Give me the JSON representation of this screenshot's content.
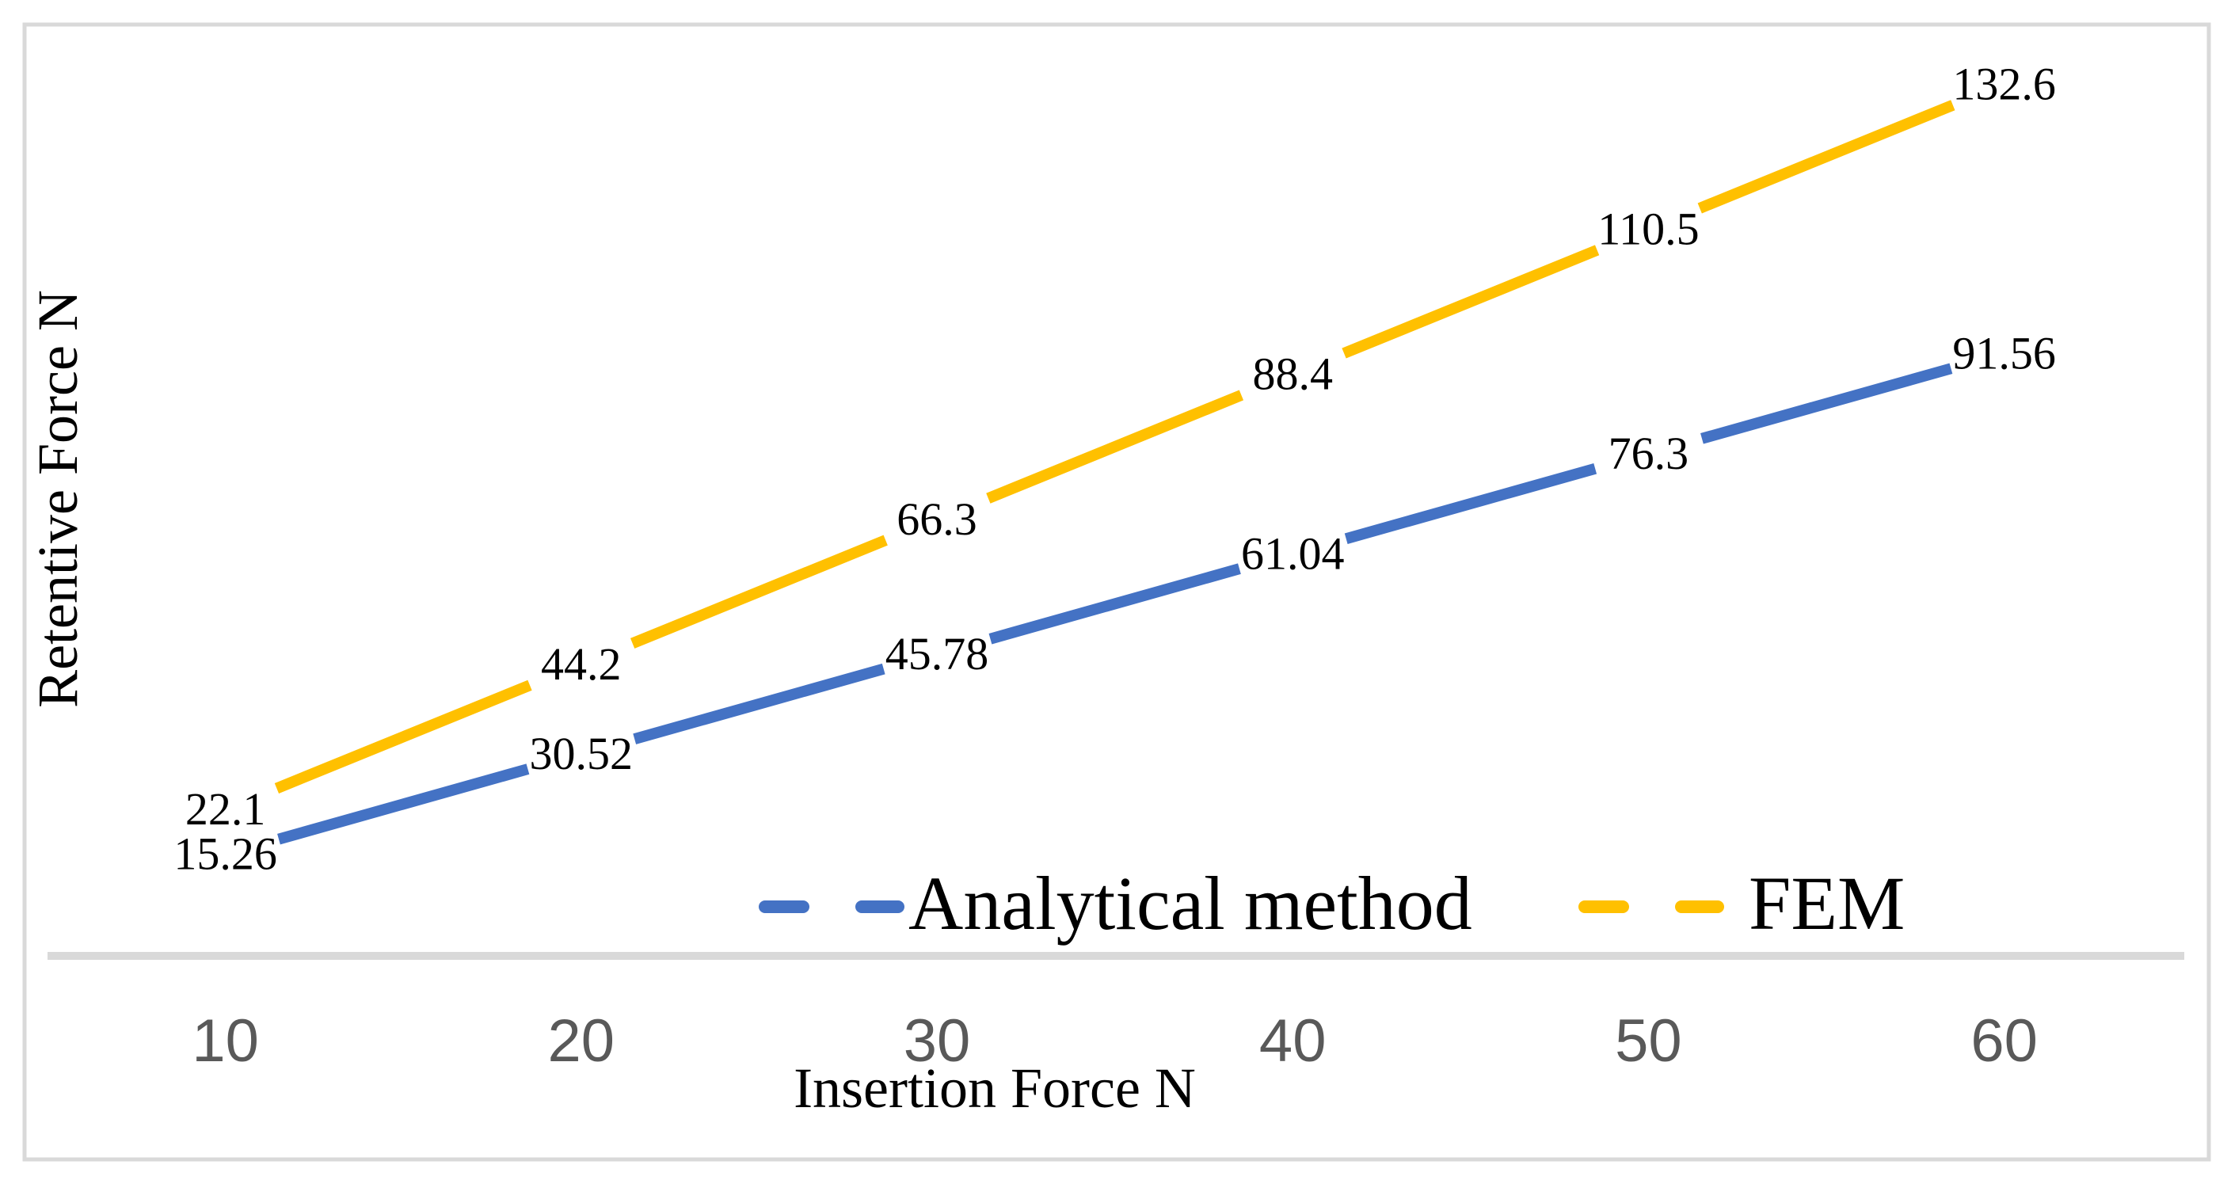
{
  "figure": {
    "background": "#ffffff",
    "border_color": "#d9d9d9",
    "axis_line_color": "#d9d9d9",
    "tick_color": "#595959",
    "text_color": "#000000"
  },
  "chart_data": {
    "type": "line",
    "title": "",
    "xlabel": "Insertion Force N",
    "ylabel": "Retentive Force N",
    "x": [
      10,
      20,
      30,
      40,
      50,
      60
    ],
    "x_tick_labels": [
      "10",
      "20",
      "30",
      "40",
      "50",
      "60"
    ],
    "ylim": [
      0,
      140
    ],
    "grid": false,
    "legend_position": "bottom-center",
    "line_style": "long-dash",
    "series": [
      {
        "name": "Analytical method",
        "color": "#4472C4",
        "values": [
          15.26,
          30.52,
          45.78,
          61.04,
          76.3,
          91.56
        ],
        "labels": [
          "15.26",
          "30.52",
          "45.78",
          "61.04",
          "76.3",
          "91.56"
        ]
      },
      {
        "name": "FEM",
        "color": "#FFC000",
        "values": [
          22.1,
          44.2,
          66.3,
          88.4,
          110.5,
          132.6
        ],
        "labels": [
          "22.1",
          "44.2",
          "66.3",
          "88.4",
          "110.5",
          "132.6"
        ]
      }
    ]
  }
}
